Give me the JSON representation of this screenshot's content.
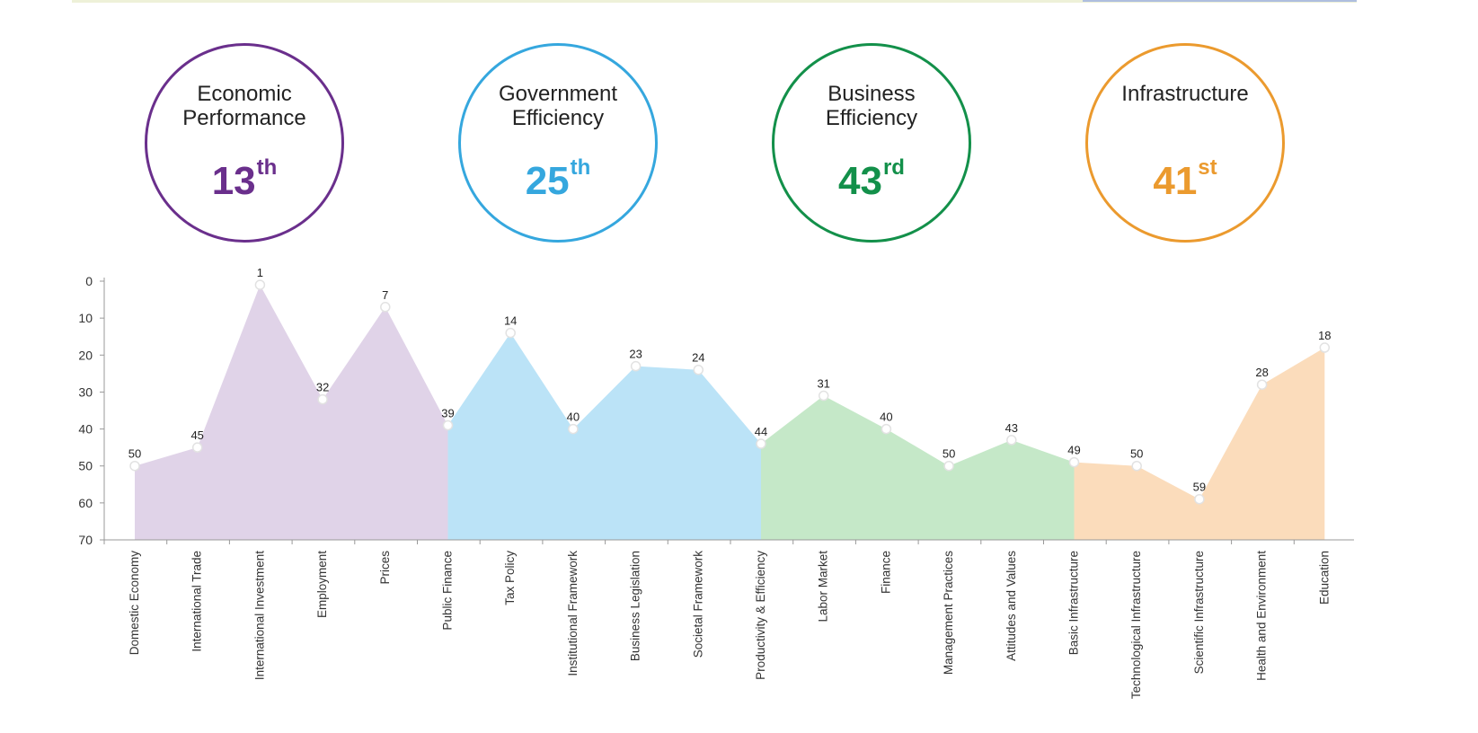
{
  "pillars": [
    {
      "name": "Economic Performance",
      "line1": "Economic",
      "line2": "Performance",
      "rank": "13",
      "suffix": "th",
      "color": "#6a2f8c"
    },
    {
      "name": "Government Efficiency",
      "line1": "Government",
      "line2": "Efficiency",
      "rank": "25",
      "suffix": "th",
      "color": "#35a7de"
    },
    {
      "name": "Business Efficiency",
      "line1": "Business",
      "line2": "Efficiency",
      "rank": "43",
      "suffix": "rd",
      "color": "#13904a"
    },
    {
      "name": "Infrastructure",
      "line1": "Infrastructure",
      "line2": "",
      "rank": "41",
      "suffix": "st",
      "color": "#eb9a2e"
    }
  ],
  "chart_data": {
    "type": "area",
    "title": "",
    "xlabel": "",
    "ylabel": "",
    "ylim": [
      0,
      70
    ],
    "y_inverted": true,
    "yticks": [
      0,
      10,
      20,
      30,
      40,
      50,
      60,
      70
    ],
    "grid": false,
    "categories": [
      "Domestic Economy",
      "International Trade",
      "International Investment",
      "Employment",
      "Prices",
      "Public Finance",
      "Tax Policy",
      "Institutional Framework",
      "Business Legislation",
      "Societal Framework",
      "Productivity & Efficiency",
      "Labor Market",
      "Finance",
      "Management Practices",
      "Attitudes and Values",
      "Basic Infrastructure",
      "Technological Infrastructure",
      "Scientific Infrastructure",
      "Health and Environment",
      "Education"
    ],
    "values": [
      50,
      45,
      1,
      32,
      7,
      39,
      14,
      40,
      23,
      24,
      44,
      31,
      40,
      50,
      43,
      49,
      50,
      59,
      28,
      18
    ],
    "series_colors": [
      "#e0d3e8",
      "#bbe3f7",
      "#c5e8c8",
      "#fbdcbb"
    ]
  }
}
